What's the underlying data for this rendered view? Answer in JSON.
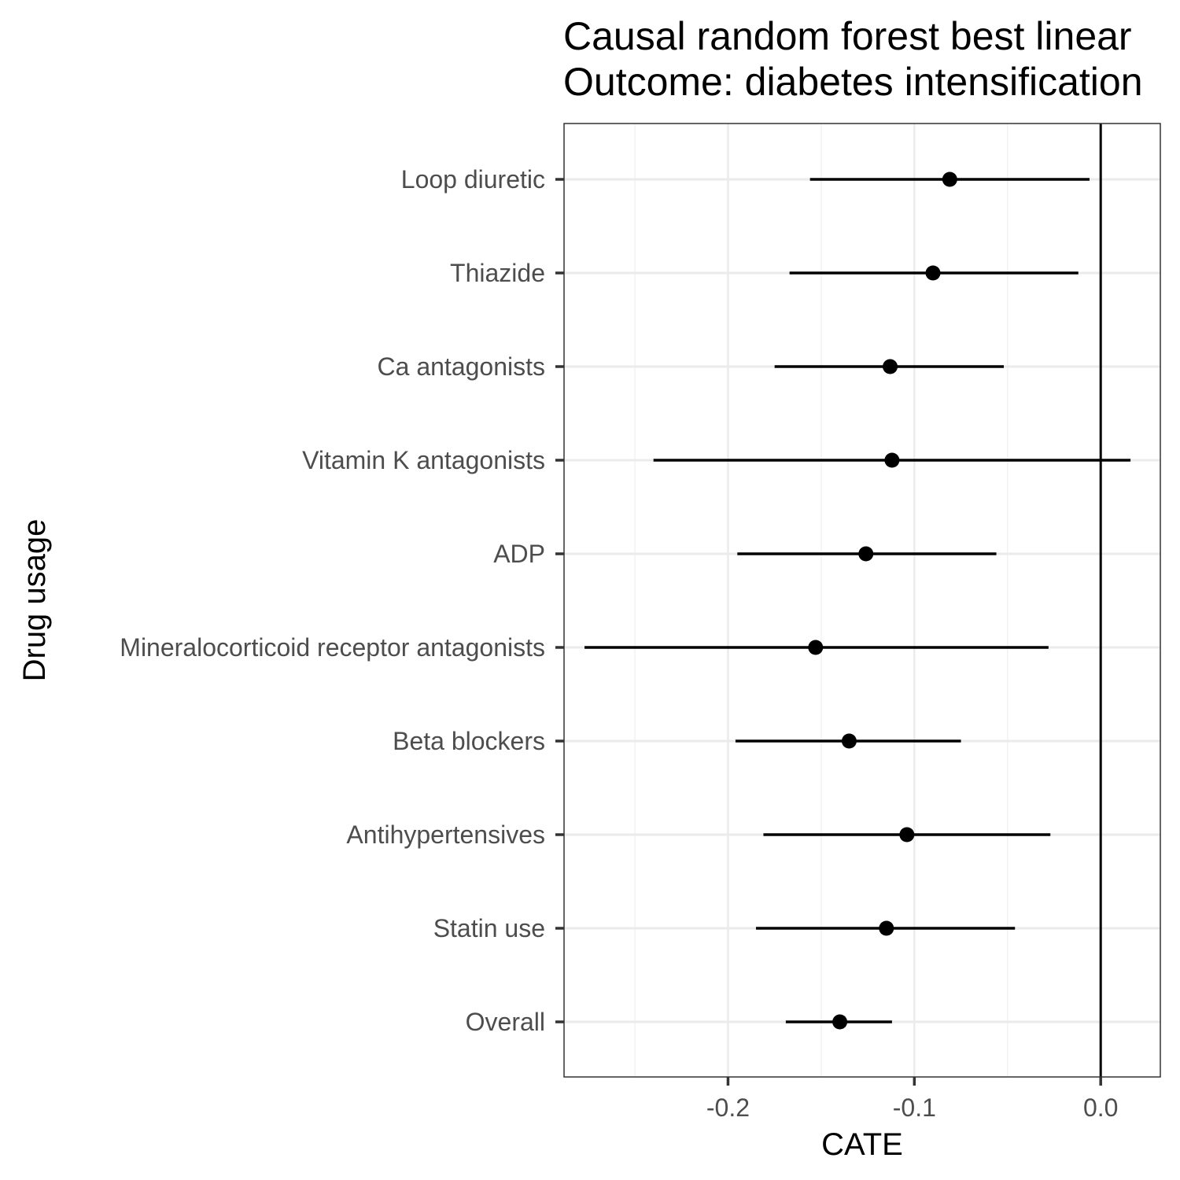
{
  "chart_data": {
    "type": "forest",
    "title_lines": [
      "Causal random forest best linear",
      "Outcome: diabetes intensification"
    ],
    "xlabel": "CATE",
    "ylabel": "Drug usage",
    "xlim": [
      -0.288,
      0.032
    ],
    "xticks": [
      -0.2,
      -0.1,
      0.0
    ],
    "xtick_labels": [
      "-0.2",
      "-0.1",
      "0.0"
    ],
    "reference_line_x": 0.0,
    "grid": true,
    "categories": [
      "Loop diuretic",
      "Thiazide",
      "Ca antagonists",
      "Vitamin K antagonists",
      "ADP",
      "Mineralocorticoid receptor antagonists",
      "Beta blockers",
      "Antihypertensives",
      "Statin use",
      "Overall"
    ],
    "estimates": [
      -0.081,
      -0.09,
      -0.113,
      -0.112,
      -0.126,
      -0.153,
      -0.135,
      -0.104,
      -0.115,
      -0.14
    ],
    "ci_lower": [
      -0.156,
      -0.167,
      -0.175,
      -0.24,
      -0.195,
      -0.277,
      -0.196,
      -0.181,
      -0.185,
      -0.169
    ],
    "ci_upper": [
      -0.006,
      -0.012,
      -0.052,
      0.016,
      -0.056,
      -0.028,
      -0.075,
      -0.027,
      -0.046,
      -0.112
    ]
  }
}
